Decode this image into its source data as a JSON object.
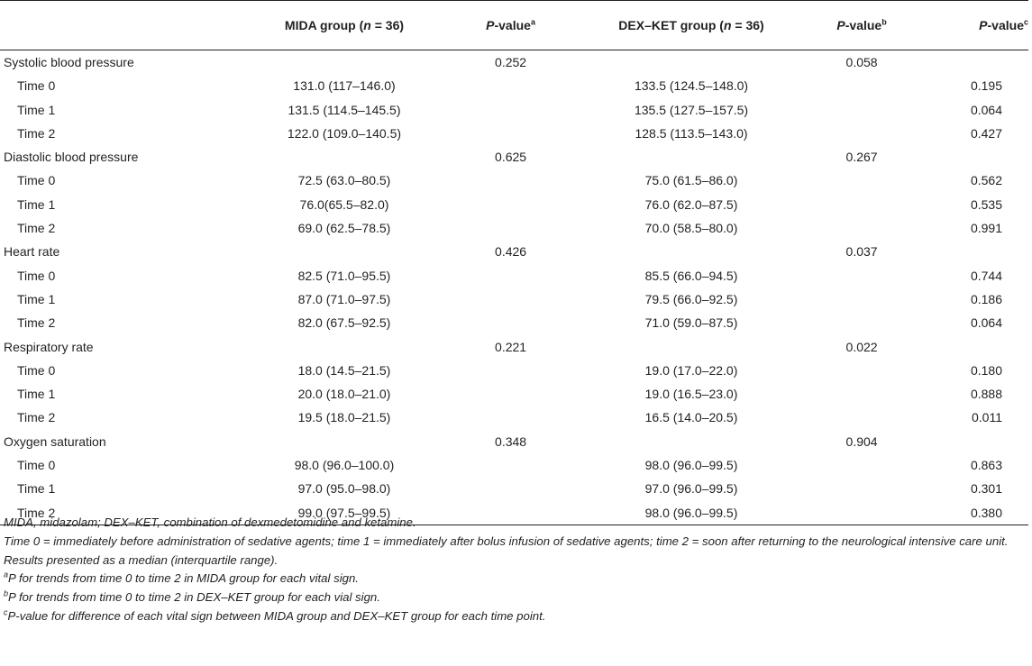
{
  "header": {
    "col1": "MIDA group (",
    "col1_n": "n",
    "col1_tail": " = 36)",
    "pval_a": "P",
    "pval_a_tail": "-value",
    "pval_a_sup": "a",
    "col3": "DEX–KET group (",
    "col3_n": "n",
    "col3_tail": " =  36)",
    "pval_b": "P",
    "pval_b_tail": "-value",
    "pval_b_sup": "b",
    "pval_c": "P",
    "pval_c_tail": "-value",
    "pval_c_sup": "c"
  },
  "groups": [
    {
      "name": "Systolic blood pressure",
      "p_mida": "0.252",
      "p_dex": "0.058",
      "rows": [
        {
          "label": "Time 0",
          "mida": "131.0 (117–146.0)",
          "dex": "133.5 (124.5–148.0)",
          "p": "0.195"
        },
        {
          "label": "Time 1",
          "mida": "131.5 (114.5–145.5)",
          "dex": "135.5 (127.5–157.5)",
          "p": "0.064"
        },
        {
          "label": "Time 2",
          "mida": "122.0 (109.0–140.5)",
          "dex": "128.5 (113.5–143.0)",
          "p": "0.427"
        }
      ]
    },
    {
      "name": "Diastolic blood pressure",
      "p_mida": "0.625",
      "p_dex": "0.267",
      "rows": [
        {
          "label": "Time 0",
          "mida": "72.5 (63.0–80.5)",
          "dex": "75.0 (61.5–86.0)",
          "p": "0.562"
        },
        {
          "label": "Time 1",
          "mida": "76.0(65.5–82.0)",
          "dex": "76.0 (62.0–87.5)",
          "p": "0.535"
        },
        {
          "label": "Time 2",
          "mida": "69.0 (62.5–78.5)",
          "dex": "70.0 (58.5–80.0)",
          "p": "0.991"
        }
      ]
    },
    {
      "name": "Heart rate",
      "p_mida": "0.426",
      "p_dex": "0.037",
      "rows": [
        {
          "label": "Time 0",
          "mida": "82.5 (71.0–95.5)",
          "dex": "85.5 (66.0–94.5)",
          "p": "0.744"
        },
        {
          "label": "Time 1",
          "mida": "87.0 (71.0–97.5)",
          "dex": "79.5 (66.0–92.5)",
          "p": "0.186"
        },
        {
          "label": "Time 2",
          "mida": "82.0 (67.5–92.5)",
          "dex": "71.0 (59.0–87.5)",
          "p": "0.064"
        }
      ]
    },
    {
      "name": "Respiratory rate",
      "p_mida": "0.221",
      "p_dex": "0.022",
      "rows": [
        {
          "label": "Time 0",
          "mida": "18.0 (14.5–21.5)",
          "dex": "19.0 (17.0–22.0)",
          "p": "0.180"
        },
        {
          "label": "Time 1",
          "mida": "20.0 (18.0–21.0)",
          "dex": "19.0 (16.5–23.0)",
          "p": "0.888"
        },
        {
          "label": "Time 2",
          "mida": "19.5 (18.0–21.5)",
          "dex": "16.5 (14.0–20.5)",
          "p": "0.011"
        }
      ]
    },
    {
      "name": "Oxygen saturation",
      "p_mida": "0.348",
      "p_dex": "0.904",
      "rows": [
        {
          "label": "Time 0",
          "mida": "98.0 (96.0–100.0)",
          "dex": "98.0 (96.0–99.5)",
          "p": "0.863"
        },
        {
          "label": "Time 1",
          "mida": "97.0 (95.0–98.0)",
          "dex": "97.0 (96.0–99.5)",
          "p": "0.301"
        },
        {
          "label": "Time 2",
          "mida": "99.0 (97.5–99.5)",
          "dex": "98.0 (96.0–99.5)",
          "p": "0.380"
        }
      ]
    }
  ],
  "notes": {
    "abbrev": "MIDA, midazolam; DEX–KET, combination of dexmedetomidine and ketamine.",
    "times": "Time 0 = immediately before administration of sedative agents; time 1 = immediately after bolus infusion of sedative agents; time 2 = soon after returning to the neurological intensive care unit.",
    "results": "Results presented as a median (interquartile range).",
    "fa_sup": "a",
    "fa": "P for trends from time 0 to time 2 in MIDA group for each vital sign.",
    "fb_sup": "b",
    "fb": "P for trends from time 0 to time 2 in DEX–KET group for each vial sign.",
    "fc_sup": "c",
    "fc": "P-value for difference of each vital sign between MIDA group and DEX–KET group for each time point."
  }
}
